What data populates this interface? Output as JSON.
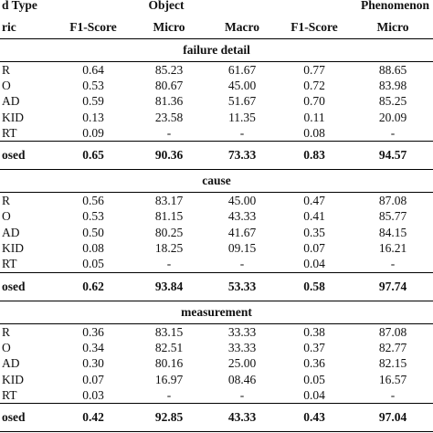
{
  "table": {
    "header": [
      [
        "d Type",
        "Object",
        "Phenomenon"
      ],
      [
        "ric",
        "F1-Score",
        "Micro",
        "Macro",
        "F1-Score",
        "Micro"
      ]
    ],
    "sections": [
      {
        "title": "failure detail",
        "rows": [
          [
            "R",
            "0.64",
            "85.23",
            "61.67",
            "0.77",
            "88.65"
          ],
          [
            "O",
            "0.53",
            "80.67",
            "45.00",
            "0.72",
            "83.98"
          ],
          [
            "AD",
            "0.59",
            "81.36",
            "51.67",
            "0.70",
            "85.25"
          ],
          [
            "KID",
            "0.13",
            "23.58",
            "11.35",
            "0.11",
            "20.09"
          ],
          [
            "RT",
            "0.09",
            "-",
            "-",
            "0.08",
            "-"
          ],
          [
            "osed",
            "0.65",
            "90.36",
            "73.33",
            "0.83",
            "94.57"
          ]
        ]
      },
      {
        "title": "cause",
        "rows": [
          [
            "R",
            "0.56",
            "83.17",
            "45.00",
            "0.47",
            "87.08"
          ],
          [
            "O",
            "0.53",
            "81.15",
            "43.33",
            "0.41",
            "85.77"
          ],
          [
            "AD",
            "0.50",
            "80.25",
            "41.67",
            "0.35",
            "84.15"
          ],
          [
            "KID",
            "0.08",
            "18.25",
            "09.15",
            "0.07",
            "16.21"
          ],
          [
            "RT",
            "0.05",
            "-",
            "-",
            "0.04",
            "-"
          ],
          [
            "osed",
            "0.62",
            "93.84",
            "53.33",
            "0.58",
            "97.74"
          ]
        ]
      },
      {
        "title": "measurement",
        "rows": [
          [
            "R",
            "0.36",
            "83.15",
            "33.33",
            "0.38",
            "87.08"
          ],
          [
            "O",
            "0.34",
            "82.51",
            "33.33",
            "0.37",
            "82.77"
          ],
          [
            "AD",
            "0.30",
            "80.16",
            "25.00",
            "0.36",
            "82.15"
          ],
          [
            "KID",
            "0.07",
            "16.97",
            "08.46",
            "0.05",
            "16.57"
          ],
          [
            "RT",
            "0.03",
            "-",
            "-",
            "0.04",
            "-"
          ],
          [
            "osed",
            "0.42",
            "92.85",
            "43.33",
            "0.43",
            "97.04"
          ]
        ]
      }
    ]
  }
}
